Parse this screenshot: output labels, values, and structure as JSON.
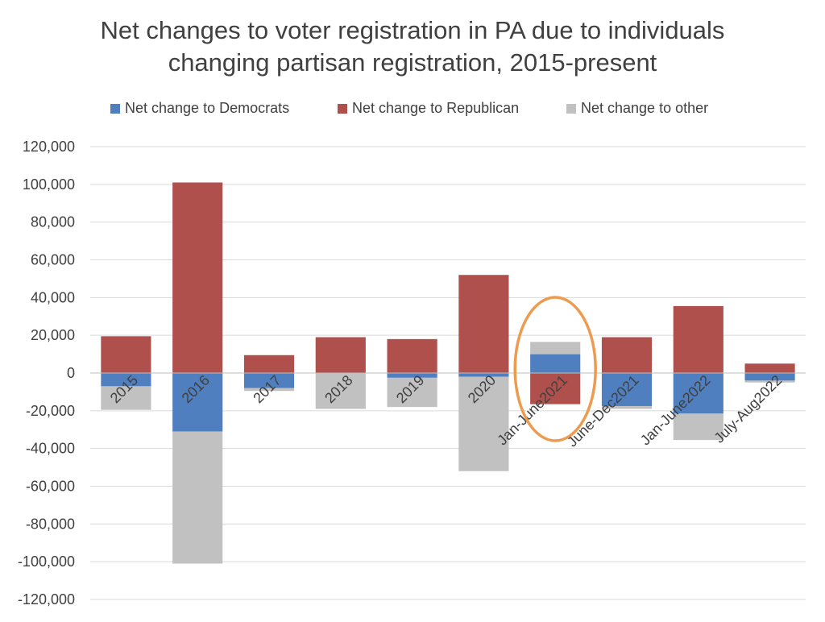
{
  "title_line1": "Net changes to voter registration in PA due to individuals",
  "title_line2": "changing partisan registration, 2015-present",
  "colors": {
    "democrats": "#4F7FBE",
    "republican": "#B0504D",
    "other": "#C1C1C1",
    "annotation": "#ED9B4F",
    "grid": "#D9D9D9",
    "text": "#404040"
  },
  "chart_data": {
    "type": "bar",
    "stacked": true,
    "title": "Net changes to voter registration in PA due to individuals changing partisan registration, 2015-present",
    "categories": [
      "2015",
      "2016",
      "2017",
      "2018",
      "2019",
      "2020",
      "Jan-June2021",
      "June-Dec2021",
      "Jan-June2022",
      "July-Aug2022"
    ],
    "series": [
      {
        "name": "Net change to Democrats",
        "values": [
          -7000,
          -31000,
          -8000,
          0,
          -2500,
          -2000,
          10000,
          -17500,
          -21500,
          -4000
        ]
      },
      {
        "name": "Net change to Republican",
        "values": [
          19500,
          101000,
          9500,
          19000,
          18000,
          52000,
          -16500,
          19000,
          35500,
          5000
        ]
      },
      {
        "name": "Net change to other",
        "values": [
          -12500,
          -70000,
          -1500,
          -19000,
          -15500,
          -50000,
          6500,
          -1500,
          -14000,
          -1000
        ]
      }
    ],
    "yticks": [
      "120,000",
      "100,000",
      "80,000",
      "60,000",
      "40,000",
      "20,000",
      "0",
      "-20,000",
      "-40,000",
      "-60,000",
      "-80,000",
      "-100,000",
      "-120,000"
    ],
    "ylim": [
      -120000,
      120000
    ],
    "ytick_step": 20000,
    "grid": true,
    "legend_position": "top",
    "highlight_category": "Jan-June2021"
  }
}
